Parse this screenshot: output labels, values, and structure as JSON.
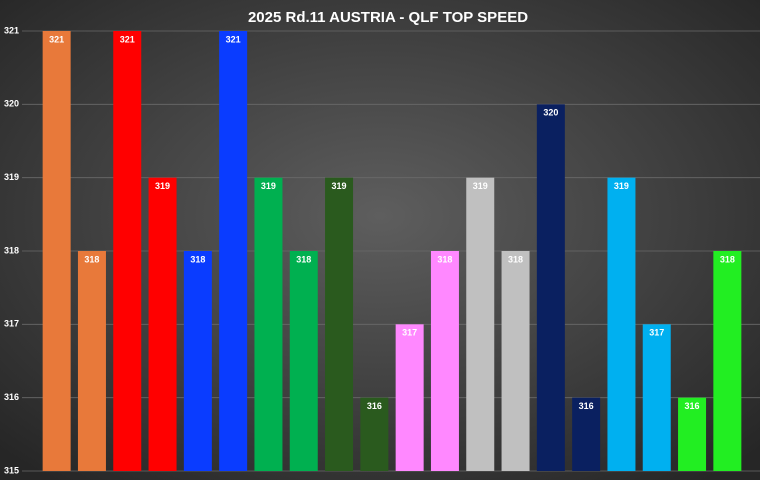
{
  "chart_data": {
    "type": "bar",
    "title": "2025 Rd.11 AUSTRIA - QLF TOP SPEED",
    "categories": [
      null,
      null,
      null,
      null,
      null,
      null,
      null,
      null,
      null,
      null,
      null,
      null,
      null,
      null,
      null,
      null,
      null,
      null,
      null,
      null
    ],
    "values": [
      321,
      318,
      321,
      319,
      318,
      321,
      319,
      318,
      319,
      316,
      317,
      318,
      319,
      318,
      320,
      316,
      319,
      317,
      316,
      318
    ],
    "colors": [
      "#e8793a",
      "#e8793a",
      "#ff0000",
      "#ff0000",
      "#0a3cff",
      "#0a3cff",
      "#00b050",
      "#00b050",
      "#2a5a1e",
      "#2a5a1e",
      "#ff88ff",
      "#ff88ff",
      "#c0c0c0",
      "#c0c0c0",
      "#0a2060",
      "#0a2060",
      "#00b0f0",
      "#00b0f0",
      "#22ee22",
      "#22ee22"
    ],
    "ylim": [
      315,
      321
    ],
    "yticks": [
      315,
      316,
      317,
      318,
      319,
      320,
      321
    ],
    "grid": true
  }
}
